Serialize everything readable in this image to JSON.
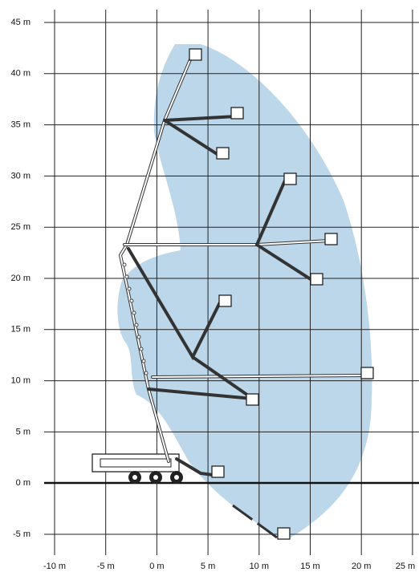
{
  "y_axis": {
    "labels": [
      "45 m",
      "40 m",
      "35 m",
      "30 m",
      "25 m",
      "20 m",
      "15 m",
      "10 m",
      "5 m",
      "0 m",
      "-5 m"
    ]
  },
  "x_axis": {
    "labels": [
      "-10 m",
      "-5 m",
      "0 m",
      "5 m",
      "10 m",
      "15 m",
      "20 m",
      "25 m"
    ]
  }
}
